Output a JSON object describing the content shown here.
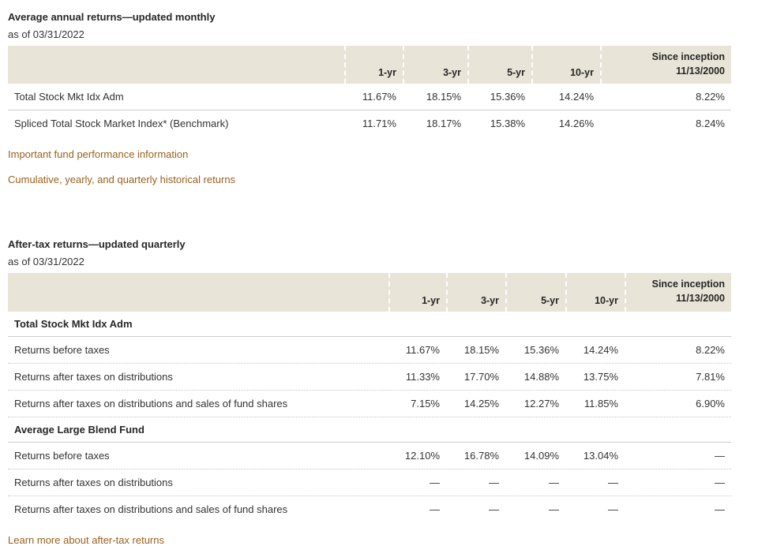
{
  "colors": {
    "header_bg": "#e8e4d7",
    "link": "#99601e",
    "text": "#333333",
    "row_border_solid": "#cccccc",
    "row_border_dotted": "#c6c6c6"
  },
  "annual": {
    "title": "Average annual returns—updated monthly",
    "as_of": "as of 03/31/2022",
    "header": {
      "c1": "1-yr",
      "c2": "3-yr",
      "c3": "5-yr",
      "c4": "10-yr",
      "c5_line1": "Since inception",
      "c5_line2": "11/13/2000"
    },
    "rows": [
      {
        "label": "Total Stock Mkt Idx Adm",
        "v1": "11.67%",
        "v2": "18.15%",
        "v3": "15.36%",
        "v4": "14.24%",
        "v5": "8.22%"
      },
      {
        "label": "Spliced Total Stock Market Index* (Benchmark)",
        "v1": "11.71%",
        "v2": "18.17%",
        "v3": "15.38%",
        "v4": "14.26%",
        "v5": "8.24%"
      }
    ],
    "links": [
      "Important fund performance information",
      "Cumulative, yearly, and quarterly historical returns"
    ]
  },
  "after_tax": {
    "title": "After-tax returns—updated quarterly",
    "as_of": "as of 03/31/2022",
    "header": {
      "c1": "1-yr",
      "c2": "3-yr",
      "c3": "5-yr",
      "c4": "10-yr",
      "c5_line1": "Since inception",
      "c5_line2": "11/13/2000"
    },
    "groups": [
      {
        "name": "Total Stock Mkt Idx Adm",
        "rows": [
          {
            "label": "Returns before taxes",
            "v1": "11.67%",
            "v2": "18.15%",
            "v3": "15.36%",
            "v4": "14.24%",
            "v5": "8.22%"
          },
          {
            "label": "Returns after taxes on distributions",
            "v1": "11.33%",
            "v2": "17.70%",
            "v3": "14.88%",
            "v4": "13.75%",
            "v5": "7.81%"
          },
          {
            "label": "Returns after taxes on distributions and sales of fund shares",
            "v1": "7.15%",
            "v2": "14.25%",
            "v3": "12.27%",
            "v4": "11.85%",
            "v5": "6.90%"
          }
        ]
      },
      {
        "name": "Average Large Blend Fund",
        "rows": [
          {
            "label": "Returns before taxes",
            "v1": "12.10%",
            "v2": "16.78%",
            "v3": "14.09%",
            "v4": "13.04%",
            "v5": "—"
          },
          {
            "label": "Returns after taxes on distributions",
            "v1": "—",
            "v2": "—",
            "v3": "—",
            "v4": "—",
            "v5": "—"
          },
          {
            "label": "Returns after taxes on distributions and sales of fund shares",
            "v1": "—",
            "v2": "—",
            "v3": "—",
            "v4": "—",
            "v5": "—"
          }
        ]
      }
    ],
    "link": "Learn more about after-tax returns"
  }
}
